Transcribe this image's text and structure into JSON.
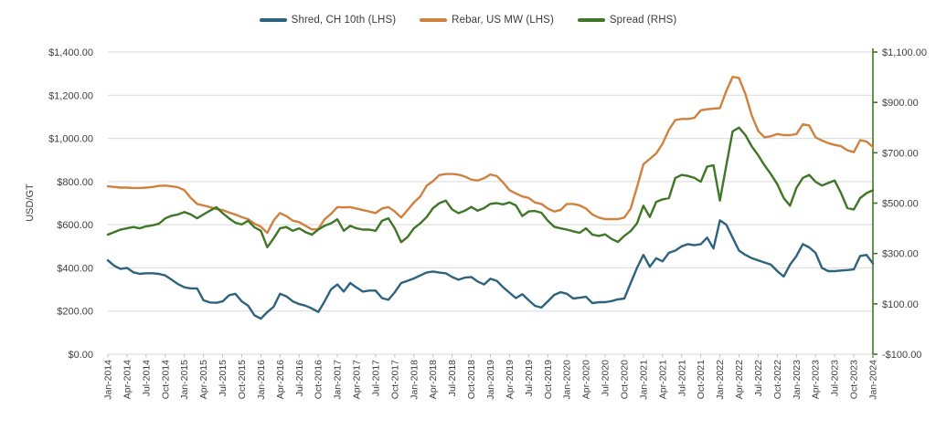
{
  "chart_data": {
    "type": "line",
    "title": "",
    "ylabel_left": "USD/GT",
    "grid": true,
    "legend_position": "top-center",
    "x_frequency": "monthly",
    "x_start": "Jan-2014",
    "x_end": "Jan-2024",
    "ylim_left": [
      0,
      1400
    ],
    "ylim_right": [
      -100,
      1100
    ],
    "y_left_tick_labels": [
      "$1,400.00",
      "$1,200.00",
      "$1,000.00",
      "$800.00",
      "$600.00",
      "$400.00",
      "$200.00",
      "$0.00"
    ],
    "y_right_tick_labels": [
      "$1,100.00",
      "$900.00",
      "$700.00",
      "$500.00",
      "$300.00",
      "$100.00",
      "-$100.00"
    ],
    "x_tick_labels": [
      "Jan-2014",
      "Apr-2014",
      "Jul-2014",
      "Oct-2014",
      "Jan-2015",
      "Apr-2015",
      "Jul-2015",
      "Oct-2015",
      "Jan-2016",
      "Apr-2016",
      "Jul-2016",
      "Oct-2016",
      "Jan-2017",
      "Apr-2017",
      "Jul-2017",
      "Oct-2017",
      "Jan-2018",
      "Apr-2018",
      "Jul-2018",
      "Oct-2018",
      "Jan-2019",
      "Apr-2019",
      "Jul-2019",
      "Oct-2019",
      "Jan-2020",
      "Apr-2020",
      "Jul-2020",
      "Oct-2020",
      "Jan-2021",
      "Apr-2021",
      "Jul-2021",
      "Oct-2021",
      "Jan-2022",
      "Apr-2022",
      "Jul-2022",
      "Oct-2022",
      "Jan-2023",
      "Apr-2023",
      "Jul-2023",
      "Oct-2023",
      "Jan-2024"
    ],
    "series": [
      {
        "name": "Shred, CH 10th (LHS)",
        "axis": "left",
        "color": "#2d637f",
        "values": [
          435,
          410,
          395,
          400,
          380,
          372,
          375,
          375,
          372,
          365,
          345,
          325,
          310,
          305,
          305,
          250,
          240,
          238,
          245,
          273,
          280,
          245,
          225,
          180,
          165,
          195,
          220,
          280,
          268,
          245,
          232,
          225,
          212,
          196,
          245,
          300,
          323,
          290,
          330,
          309,
          290,
          295,
          295,
          260,
          252,
          287,
          330,
          340,
          351,
          365,
          379,
          383,
          378,
          375,
          358,
          345,
          355,
          358,
          337,
          323,
          350,
          340,
          310,
          285,
          260,
          278,
          250,
          224,
          216,
          245,
          275,
          287,
          280,
          258,
          262,
          266,
          237,
          241,
          241,
          246,
          254,
          258,
          330,
          400,
          460,
          405,
          445,
          430,
          470,
          480,
          500,
          510,
          505,
          510,
          540,
          490,
          620,
          600,
          540,
          480,
          460,
          445,
          435,
          425,
          415,
          385,
          360,
          415,
          455,
          510,
          495,
          470,
          400,
          385,
          385,
          388,
          390,
          393,
          455,
          460,
          420
        ]
      },
      {
        "name": "Rebar, US MW (LHS)",
        "axis": "left",
        "color": "#d0813e",
        "values": [
          778,
          775,
          772,
          772,
          770,
          770,
          772,
          775,
          780,
          781,
          778,
          773,
          760,
          724,
          696,
          689,
          682,
          672,
          668,
          657,
          647,
          635,
          626,
          605,
          591,
          562,
          620,
          654,
          640,
          619,
          612,
          595,
          578,
          580,
          625,
          650,
          682,
          680,
          682,
          675,
          668,
          661,
          654,
          675,
          682,
          661,
          633,
          668,
          703,
          731,
          781,
          802,
          830,
          835,
          835,
          832,
          823,
          809,
          805,
          815,
          833,
          825,
          795,
          760,
          745,
          731,
          724,
          703,
          696,
          675,
          661,
          668,
          696,
          696,
          690,
          675,
          647,
          633,
          626,
          626,
          626,
          633,
          675,
          774,
          880,
          905,
          930,
          975,
          1040,
          1085,
          1090,
          1090,
          1095,
          1130,
          1135,
          1138,
          1140,
          1220,
          1285,
          1280,
          1205,
          1105,
          1035,
          1005,
          1010,
          1020,
          1015,
          1015,
          1020,
          1065,
          1060,
          1005,
          990,
          978,
          970,
          964,
          945,
          936,
          992,
          985,
          960
        ]
      },
      {
        "name": "Spread (RHS)",
        "axis": "right",
        "color": "#3f7627",
        "values": [
          375,
          385,
          395,
          400,
          405,
          400,
          408,
          412,
          418,
          440,
          450,
          455,
          465,
          455,
          440,
          455,
          470,
          484,
          460,
          440,
          422,
          415,
          430,
          404,
          390,
          325,
          360,
          400,
          405,
          390,
          400,
          385,
          375,
          395,
          410,
          420,
          436,
          390,
          410,
          400,
          395,
          395,
          390,
          430,
          440,
          400,
          345,
          365,
          400,
          420,
          445,
          480,
          500,
          510,
          475,
          460,
          470,
          485,
          470,
          480,
          497,
          500,
          495,
          503,
          491,
          449,
          467,
          469,
          462,
          430,
          406,
          400,
          395,
          388,
          382,
          400,
          375,
          370,
          376,
          358,
          346,
          370,
          389,
          420,
          490,
          445,
          505,
          515,
          520,
          600,
          612,
          608,
          600,
          585,
          645,
          650,
          510,
          650,
          785,
          800,
          770,
          725,
          690,
          650,
          615,
          575,
          520,
          490,
          560,
          600,
          612,
          585,
          570,
          580,
          590,
          540,
          480,
          475,
          520,
          540,
          551
        ]
      }
    ],
    "colors": {
      "background": "#ffffff",
      "gridline": "#d9d9d9",
      "axis_text": "#404040",
      "right_axis_line": "#3f7627",
      "x_tick_mark": "#bfbfbf"
    }
  },
  "legend": {
    "items": [
      {
        "label": "Shred, CH 10th (LHS)"
      },
      {
        "label": "Rebar, US MW (LHS)"
      },
      {
        "label": "Spread (RHS)"
      }
    ]
  }
}
